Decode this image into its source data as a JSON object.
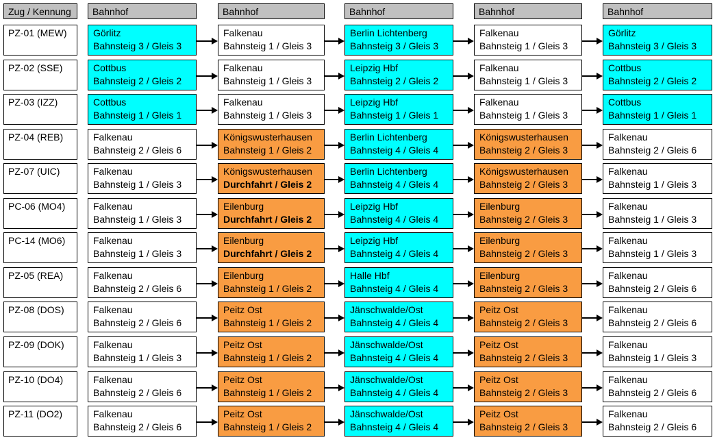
{
  "header": {
    "train_col": "Zug / Kennung",
    "station_col": "Bahnhof"
  },
  "colors": {
    "cyan": "#00FFFF",
    "orange": "#F99C42",
    "white": "#FFFFFF",
    "header_gray": "#C0C0C0",
    "border": "#000000"
  },
  "rows": [
    {
      "train": "PZ-01 (MEW)",
      "stops": [
        {
          "station": "Görlitz",
          "platform": "Bahnsteig 3 / Gleis 3",
          "color": "cyan"
        },
        {
          "station": "Falkenau",
          "platform": "Bahnsteig 1 / Gleis 3",
          "color": "white"
        },
        {
          "station": "Berlin Lichtenberg",
          "platform": "Bahnsteig 3 / Gleis 3",
          "color": "cyan"
        },
        {
          "station": "Falkenau",
          "platform": "Bahnsteig 1 / Gleis 3",
          "color": "white"
        },
        {
          "station": "Görlitz",
          "platform": "Bahnsteig 3 / Gleis 3",
          "color": "cyan"
        }
      ]
    },
    {
      "train": "PZ-02 (SSE)",
      "stops": [
        {
          "station": "Cottbus",
          "platform": "Bahnsteig 2 / Gleis 2",
          "color": "cyan"
        },
        {
          "station": "Falkenau",
          "platform": "Bahnsteig 1 / Gleis 3",
          "color": "white"
        },
        {
          "station": "Leipzig Hbf",
          "platform": "Bahnsteig 2 / Gleis 2",
          "color": "cyan"
        },
        {
          "station": "Falkenau",
          "platform": "Bahnsteig 1 / Gleis 3",
          "color": "white"
        },
        {
          "station": "Cottbus",
          "platform": "Bahnsteig 2 / Gleis 2",
          "color": "cyan"
        }
      ]
    },
    {
      "train": "PZ-03 (IZZ)",
      "stops": [
        {
          "station": "Cottbus",
          "platform": "Bahnsteig 1 / Gleis 1",
          "color": "cyan"
        },
        {
          "station": "Falkenau",
          "platform": "Bahnsteig 1 / Gleis 3",
          "color": "white"
        },
        {
          "station": "Leipzig Hbf",
          "platform": "Bahnsteig 1 / Gleis 1",
          "color": "cyan"
        },
        {
          "station": "Falkenau",
          "platform": "Bahnsteig 1 / Gleis 3",
          "color": "white"
        },
        {
          "station": "Cottbus",
          "platform": "Bahnsteig 1 / Gleis 1",
          "color": "cyan"
        }
      ]
    },
    {
      "train": "PZ-04 (REB)",
      "stops": [
        {
          "station": "Falkenau",
          "platform": "Bahnsteig 2 / Gleis 6",
          "color": "white"
        },
        {
          "station": "Königswusterhausen",
          "platform": "Bahnsteig 1 / Gleis 2",
          "color": "orange"
        },
        {
          "station": "Berlin Lichtenberg",
          "platform": "Bahnsteig 4 / Gleis 4",
          "color": "cyan"
        },
        {
          "station": "Königswusterhausen",
          "platform": "Bahnsteig 2 / Gleis 3",
          "color": "orange"
        },
        {
          "station": "Falkenau",
          "platform": "Bahnsteig 2 / Gleis 6",
          "color": "white"
        }
      ]
    },
    {
      "train": "PZ-07 (UIC)",
      "stops": [
        {
          "station": "Falkenau",
          "platform": "Bahnsteig 1 / Gleis 3",
          "color": "white"
        },
        {
          "station": "Königswusterhausen",
          "platform": "Durchfahrt / Gleis 2",
          "color": "orange",
          "bold": true
        },
        {
          "station": "Berlin Lichtenberg",
          "platform": "Bahnsteig 4 / Gleis 4",
          "color": "cyan"
        },
        {
          "station": "Königswusterhausen",
          "platform": "Bahnsteig 2 / Gleis 3",
          "color": "orange"
        },
        {
          "station": "Falkenau",
          "platform": "Bahnsteig 1 / Gleis 3",
          "color": "white"
        }
      ]
    },
    {
      "train": "PC-06 (MO4)",
      "stops": [
        {
          "station": "Falkenau",
          "platform": "Bahnsteig 1 / Gleis 3",
          "color": "white"
        },
        {
          "station": "Eilenburg",
          "platform": "Durchfahrt / Gleis 2",
          "color": "orange",
          "bold": true
        },
        {
          "station": "Leipzig Hbf",
          "platform": "Bahnsteig 4 / Gleis 4",
          "color": "cyan"
        },
        {
          "station": "Eilenburg",
          "platform": "Bahnsteig 2 / Gleis 3",
          "color": "orange"
        },
        {
          "station": "Falkenau",
          "platform": "Bahnsteig 1 / Gleis 3",
          "color": "white"
        }
      ]
    },
    {
      "train": "PC-14 (MO6)",
      "stops": [
        {
          "station": "Falkenau",
          "platform": "Bahnsteig 1 / Gleis 3",
          "color": "white"
        },
        {
          "station": "Eilenburg",
          "platform": "Durchfahrt / Gleis 2",
          "color": "orange",
          "bold": true
        },
        {
          "station": "Leipzig Hbf",
          "platform": "Bahnsteig 4 / Gleis 4",
          "color": "cyan"
        },
        {
          "station": "Eilenburg",
          "platform": "Bahnsteig 2 / Gleis 3",
          "color": "orange"
        },
        {
          "station": "Falkenau",
          "platform": "Bahnsteig 1 / Gleis 3",
          "color": "white"
        }
      ]
    },
    {
      "train": "PZ-05 (REA)",
      "stops": [
        {
          "station": "Falkenau",
          "platform": "Bahnsteig 2 / Gleis 6",
          "color": "white"
        },
        {
          "station": "Eilenburg",
          "platform": "Bahnsteig 1 / Gleis 2",
          "color": "orange"
        },
        {
          "station": "Halle Hbf",
          "platform": "Bahnsteig 4 / Gleis 4",
          "color": "cyan"
        },
        {
          "station": "Eilenburg",
          "platform": "Bahnsteig 2 / Gleis 3",
          "color": "orange"
        },
        {
          "station": "Falkenau",
          "platform": "Bahnsteig 2 / Gleis 6",
          "color": "white"
        }
      ]
    },
    {
      "train": "PZ-08 (DOS)",
      "stops": [
        {
          "station": "Falkenau",
          "platform": "Bahnsteig 2 / Gleis 6",
          "color": "white"
        },
        {
          "station": "Peitz Ost",
          "platform": "Bahnsteig 1 / Gleis 2",
          "color": "orange"
        },
        {
          "station": "Jänschwalde/Ost",
          "platform": "Bahnsteig 4 / Gleis 4",
          "color": "cyan"
        },
        {
          "station": "Peitz Ost",
          "platform": "Bahnsteig 2 / Gleis 3",
          "color": "orange"
        },
        {
          "station": "Falkenau",
          "platform": "Bahnsteig 2 / Gleis 6",
          "color": "white"
        }
      ]
    },
    {
      "train": "PZ-09 (DOK)",
      "stops": [
        {
          "station": "Falkenau",
          "platform": "Bahnsteig 1 / Gleis 3",
          "color": "white"
        },
        {
          "station": "Peitz Ost",
          "platform": "Bahnsteig 1 / Gleis 2",
          "color": "orange"
        },
        {
          "station": "Jänschwalde/Ost",
          "platform": "Bahnsteig 4 / Gleis 4",
          "color": "cyan"
        },
        {
          "station": "Peitz Ost",
          "platform": "Bahnsteig 2 / Gleis 3",
          "color": "orange"
        },
        {
          "station": "Falkenau",
          "platform": "Bahnsteig 1 / Gleis 3",
          "color": "white"
        }
      ]
    },
    {
      "train": "PZ-10 (DO4)",
      "stops": [
        {
          "station": "Falkenau",
          "platform": "Bahnsteig 2 / Gleis 6",
          "color": "white"
        },
        {
          "station": "Peitz Ost",
          "platform": "Bahnsteig 1 / Gleis 2",
          "color": "orange"
        },
        {
          "station": "Jänschwalde/Ost",
          "platform": "Bahnsteig 4 / Gleis 4",
          "color": "cyan"
        },
        {
          "station": "Peitz Ost",
          "platform": "Bahnsteig 2 / Gleis 3",
          "color": "orange"
        },
        {
          "station": "Falkenau",
          "platform": "Bahnsteig 2 / Gleis 6",
          "color": "white"
        }
      ]
    },
    {
      "train": "PZ-11 (DO2)",
      "stops": [
        {
          "station": "Falkenau",
          "platform": "Bahnsteig 2 / Gleis 6",
          "color": "white"
        },
        {
          "station": "Peitz Ost",
          "platform": "Bahnsteig 1 / Gleis 2",
          "color": "orange"
        },
        {
          "station": "Jänschwalde/Ost",
          "platform": "Bahnsteig 4 / Gleis 4",
          "color": "cyan"
        },
        {
          "station": "Peitz Ost",
          "platform": "Bahnsteig 2 / Gleis 3",
          "color": "orange"
        },
        {
          "station": "Falkenau",
          "platform": "Bahnsteig 2 / Gleis 6",
          "color": "white"
        }
      ]
    }
  ]
}
